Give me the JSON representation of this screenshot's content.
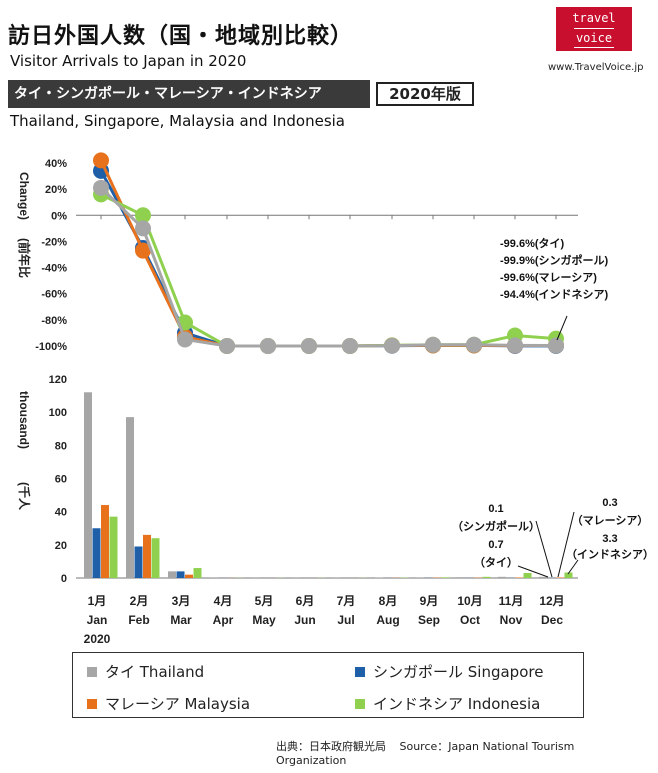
{
  "header": {
    "title": "訪日外国人数（国・地域別比較）",
    "subtitle": "Visitor Arrivals to Japan in 2020",
    "logo_line1": "travel",
    "logo_line2": "voice",
    "site_url": "www.TravelVoice.jp",
    "bar_text": "タイ・シンガポール・マレーシア・インドネシア",
    "edition": "2020年版",
    "countries_en": "Thailand, Singapore, Malaysia and Indonesia"
  },
  "colors": {
    "thailand": "#a6a6a6",
    "singapore": "#1f5fa8",
    "malaysia": "#e8711c",
    "indonesia": "#8fd14f"
  },
  "chart_data": [
    {
      "type": "line",
      "ylabel_ja": "(前年比",
      "ylabel_en": "Change)",
      "ylim": [
        -100,
        40
      ],
      "yticks": [
        "40%",
        "20%",
        "0%",
        "-20%",
        "-40%",
        "-60%",
        "-80%",
        "-100%"
      ],
      "categories": [
        "1月",
        "2月",
        "3月",
        "4月",
        "5月",
        "6月",
        "7月",
        "8月",
        "9月",
        "10月",
        "11月",
        "12月"
      ],
      "series": [
        {
          "name": "タイ Thailand",
          "key": "thailand",
          "values": [
            21,
            -10,
            -95,
            -100,
            -100,
            -100,
            -100,
            -99.8,
            -99,
            -99,
            -99.5,
            -99.6
          ]
        },
        {
          "name": "シンガポール Singapore",
          "key": "singapore",
          "values": [
            34,
            -25,
            -90,
            -100,
            -100,
            -100,
            -100,
            -99.8,
            -99.5,
            -99.5,
            -99.9,
            -99.9
          ]
        },
        {
          "name": "マレーシア Malaysia",
          "key": "malaysia",
          "values": [
            42,
            -27,
            -93,
            -100,
            -100,
            -100,
            -100,
            -99.5,
            -99.5,
            -99.5,
            -99.6,
            -99.6
          ]
        },
        {
          "name": "インドネシア Indonesia",
          "key": "indonesia",
          "values": [
            16,
            0,
            -82,
            -100,
            -100,
            -100,
            -100,
            -99.5,
            -99,
            -99,
            -92,
            -94.4
          ]
        }
      ],
      "annotations": [
        "-99.6%(タイ)",
        "-99.9%(シンガポール)",
        "-99.6%(マレーシア)",
        "-94.4%(インドネシア)"
      ]
    },
    {
      "type": "bar",
      "ylabel_ja": "(千人",
      "ylabel_en": "thousand)",
      "ylim": [
        0,
        120
      ],
      "yticks": [
        "120",
        "100",
        "80",
        "60",
        "40",
        "20",
        "0"
      ],
      "categories_ja": [
        "1月",
        "2月",
        "3月",
        "4月",
        "5月",
        "6月",
        "7月",
        "8月",
        "9月",
        "10月",
        "11月",
        "12月"
      ],
      "categories_en": [
        "Jan",
        "Feb",
        "Mar",
        "Apr",
        "May",
        "Jun",
        "Jul",
        "Aug",
        "Sep",
        "Oct",
        "Nov",
        "Dec"
      ],
      "year_label": "2020",
      "series": [
        {
          "name": "タイ Thailand",
          "key": "thailand",
          "values": [
            112,
            97,
            4,
            0.1,
            0.1,
            0.1,
            0.1,
            0.2,
            0.4,
            0.5,
            0.7,
            0.7
          ]
        },
        {
          "name": "シンガポール Singapore",
          "key": "singapore",
          "values": [
            30,
            19,
            4,
            0.05,
            0.02,
            0.02,
            0.02,
            0.05,
            0.1,
            0.1,
            0.1,
            0.1
          ]
        },
        {
          "name": "マレーシア Malaysia",
          "key": "malaysia",
          "values": [
            44,
            26,
            2,
            0.05,
            0.02,
            0.02,
            0.03,
            0.1,
            0.2,
            0.2,
            0.3,
            0.3
          ]
        },
        {
          "name": "インドネシア Indonesia",
          "key": "indonesia",
          "values": [
            37,
            24,
            6,
            0.1,
            0.1,
            0.1,
            0.1,
            0.2,
            0.4,
            0.7,
            3,
            3.3
          ]
        }
      ],
      "annotations": {
        "left": [
          "0.1",
          "（シンガポール）",
          "0.7",
          "（タイ）"
        ],
        "right": [
          "0.3",
          "（マレーシア）",
          "3.3",
          "（インドネシア）"
        ]
      }
    }
  ],
  "legend": {
    "items": [
      {
        "label": "タイ Thailand",
        "key": "thailand"
      },
      {
        "label": "シンガポール Singapore",
        "key": "singapore"
      },
      {
        "label": "マレーシア  Malaysia",
        "key": "malaysia"
      },
      {
        "label": "インドネシア Indonesia",
        "key": "indonesia"
      }
    ]
  },
  "source": {
    "ja": "出典：日本政府観光局",
    "en": "Source：Japan  National Tourism  Organization"
  }
}
